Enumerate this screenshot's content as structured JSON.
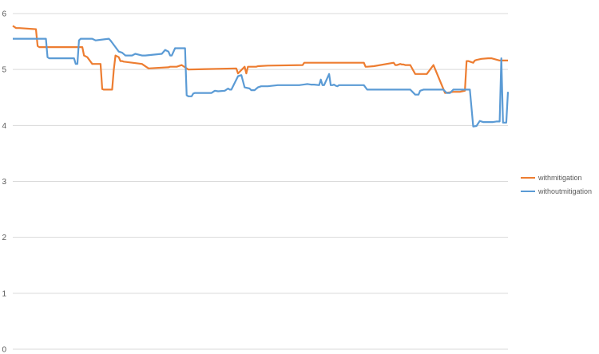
{
  "chart_data": {
    "type": "line",
    "title": "",
    "xlabel": "",
    "ylabel": "",
    "ylim": [
      0,
      6
    ],
    "yticks": [
      "0",
      "1",
      "2",
      "3",
      "4",
      "5",
      "6"
    ],
    "grid": "horizontal",
    "legend_position": "right",
    "n_points": 300,
    "series": [
      {
        "name": "withmitigation",
        "color": "#ED7D31",
        "x": [
          0,
          2,
          4,
          14,
          15,
          16,
          17,
          42,
          43,
          45,
          48,
          53,
          54,
          55,
          60,
          61,
          62,
          64,
          65,
          66,
          67,
          78,
          82,
          94,
          95,
          99,
          102,
          106,
          135,
          136,
          140,
          141,
          142,
          146,
          147,
          148,
          154,
          175,
          176,
          212,
          213,
          214,
          218,
          230,
          231,
          232,
          234,
          235,
          236,
          237,
          240,
          243,
          250,
          254,
          261,
          266,
          270,
          273,
          274,
          275,
          278,
          279,
          280,
          283,
          287,
          289,
          294,
          299
        ],
        "values": [
          5.78,
          5.74,
          5.74,
          5.72,
          5.42,
          5.4,
          5.4,
          5.4,
          5.25,
          5.22,
          5.1,
          5.1,
          4.65,
          4.64,
          4.64,
          5.0,
          5.25,
          5.22,
          5.15,
          5.15,
          5.14,
          5.1,
          5.02,
          5.04,
          5.05,
          5.05,
          5.08,
          5.0,
          5.02,
          4.93,
          5.05,
          4.93,
          5.05,
          5.05,
          5.05,
          5.06,
          5.07,
          5.08,
          5.12,
          5.12,
          5.05,
          5.05,
          5.06,
          5.12,
          5.08,
          5.08,
          5.1,
          5.09,
          5.09,
          5.08,
          5.08,
          4.92,
          4.92,
          5.08,
          4.58,
          4.6,
          4.6,
          4.62,
          5.15,
          5.15,
          5.12,
          5.16,
          5.17,
          5.19,
          5.2,
          5.2,
          5.16,
          5.16
        ]
      },
      {
        "name": "withoutmitigation",
        "color": "#5B9BD5",
        "x": [
          0,
          2,
          20,
          21,
          22,
          37,
          38,
          39,
          40,
          41,
          42,
          48,
          50,
          58,
          59,
          60,
          62,
          64,
          66,
          68,
          70,
          72,
          74,
          78,
          79,
          80,
          90,
          92,
          94,
          95,
          96,
          98,
          100,
          104,
          105,
          106,
          107,
          108,
          109,
          110,
          111,
          112,
          113,
          120,
          122,
          124,
          128,
          130,
          131,
          132,
          136,
          138,
          140,
          143,
          144,
          146,
          148,
          150,
          154,
          160,
          173,
          178,
          180,
          182,
          185,
          186,
          187,
          188,
          191,
          192,
          193,
          194,
          195,
          196,
          197,
          206,
          212,
          214,
          216,
          218,
          220,
          222,
          240,
          243,
          245,
          246,
          248,
          250,
          260,
          262,
          264,
          266,
          268,
          270,
          272,
          274,
          276,
          278,
          280,
          282,
          284,
          286,
          288,
          290,
          292,
          294,
          295,
          296,
          297,
          298,
          299
        ],
        "values": [
          5.55,
          5.55,
          5.55,
          5.22,
          5.2,
          5.2,
          5.1,
          5.1,
          5.52,
          5.55,
          5.55,
          5.55,
          5.52,
          5.55,
          5.52,
          5.48,
          5.4,
          5.32,
          5.3,
          5.25,
          5.25,
          5.25,
          5.28,
          5.25,
          5.25,
          5.25,
          5.28,
          5.35,
          5.32,
          5.25,
          5.25,
          5.38,
          5.38,
          5.38,
          4.54,
          4.52,
          4.52,
          4.52,
          4.57,
          4.58,
          4.58,
          4.58,
          4.58,
          4.58,
          4.62,
          4.61,
          4.62,
          4.66,
          4.64,
          4.64,
          4.88,
          4.9,
          4.68,
          4.66,
          4.63,
          4.63,
          4.68,
          4.7,
          4.7,
          4.72,
          4.72,
          4.74,
          4.73,
          4.73,
          4.72,
          4.82,
          4.72,
          4.72,
          4.92,
          4.72,
          4.72,
          4.73,
          4.71,
          4.7,
          4.72,
          4.72,
          4.72,
          4.64,
          4.64,
          4.64,
          4.64,
          4.64,
          4.64,
          4.55,
          4.55,
          4.62,
          4.64,
          4.64,
          4.64,
          4.58,
          4.58,
          4.64,
          4.64,
          4.64,
          4.64,
          4.64,
          4.64,
          3.98,
          3.99,
          4.08,
          4.06,
          4.06,
          4.06,
          4.06,
          4.07,
          4.07,
          5.2,
          4.05,
          4.05,
          4.05,
          4.6
        ]
      }
    ]
  }
}
